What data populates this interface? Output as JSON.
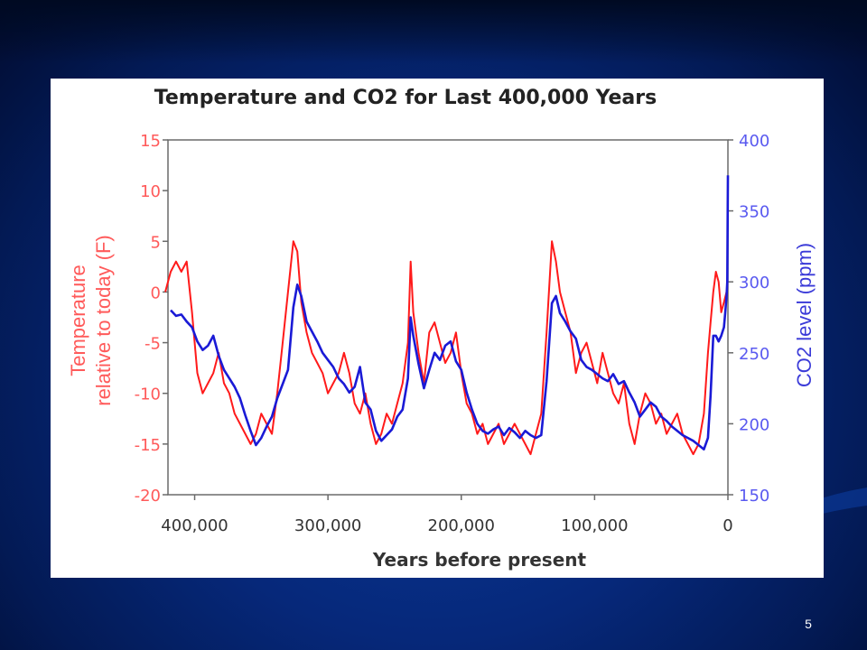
{
  "slide": {
    "page_number": "5"
  },
  "colors": {
    "temperature": "#ff1a1a",
    "co2": "#1a1ad6",
    "axis_left": "#ff5a5a",
    "axis_right": "#5a5af0"
  },
  "chart_data": {
    "type": "line",
    "title": "Temperature and CO2 for Last 400,000 Years",
    "xlabel": "Years before present",
    "ylabel": "Temperature relative to today (F)",
    "y2label": "CO2 level (ppm)",
    "xlim": [
      420000,
      0
    ],
    "ylim": [
      -20,
      15
    ],
    "y2lim": [
      150,
      400
    ],
    "xticks": [
      "400,000",
      "300,000",
      "200,000",
      "100,000",
      "0"
    ],
    "xtick_values": [
      400000,
      300000,
      200000,
      100000,
      0
    ],
    "yticks": [
      "15",
      "10",
      "5",
      "0",
      "-5",
      "-10",
      "-15",
      "-20"
    ],
    "ytick_values": [
      15,
      10,
      5,
      0,
      -5,
      -10,
      -15,
      -20
    ],
    "y2ticks": [
      "400",
      "350",
      "300",
      "250",
      "200",
      "150"
    ],
    "y2tick_values": [
      400,
      350,
      300,
      250,
      200,
      150
    ],
    "grid": false,
    "series": [
      {
        "axis": "left",
        "x": [
          422000,
          418000,
          414000,
          410000,
          406000,
          402000,
          398000,
          394000,
          390000,
          386000,
          382000,
          378000,
          374000,
          370000,
          366000,
          362000,
          358000,
          354000,
          350000,
          346000,
          342000,
          338000,
          334000,
          330000,
          326000,
          323000,
          320000,
          316000,
          312000,
          308000,
          304000,
          300000,
          296000,
          292000,
          288000,
          284000,
          280000,
          276000,
          272000,
          268000,
          264000,
          260000,
          256000,
          252000,
          248000,
          244000,
          240000,
          238000,
          236000,
          232000,
          228000,
          224000,
          220000,
          216000,
          212000,
          208000,
          204000,
          200000,
          196000,
          192000,
          188000,
          184000,
          180000,
          176000,
          172000,
          168000,
          164000,
          160000,
          156000,
          152000,
          148000,
          144000,
          140000,
          136000,
          132000,
          129000,
          126000,
          122000,
          118000,
          114000,
          110000,
          106000,
          102000,
          98000,
          94000,
          90000,
          86000,
          82000,
          78000,
          74000,
          70000,
          66000,
          62000,
          58000,
          54000,
          50000,
          46000,
          42000,
          38000,
          34000,
          30000,
          26000,
          22000,
          18000,
          15000,
          13000,
          11000,
          9000,
          7000,
          5000,
          3000,
          1000,
          0
        ],
        "y": [
          0,
          2,
          3,
          2,
          3,
          -2,
          -8,
          -10,
          -9,
          -8,
          -6,
          -9,
          -10,
          -12,
          -13,
          -14,
          -15,
          -14,
          -12,
          -13,
          -14,
          -10,
          -5,
          0,
          5,
          4,
          -1,
          -4,
          -6,
          -7,
          -8,
          -10,
          -9,
          -8,
          -6,
          -8,
          -11,
          -12,
          -10,
          -13,
          -15,
          -14,
          -12,
          -13,
          -11,
          -9,
          -5,
          3,
          -2,
          -6,
          -9,
          -4,
          -3,
          -5,
          -7,
          -6,
          -4,
          -8,
          -11,
          -12,
          -14,
          -13,
          -15,
          -14,
          -13,
          -15,
          -14,
          -13,
          -14,
          -15,
          -16,
          -14,
          -12,
          -4,
          5,
          3,
          0,
          -2,
          -4,
          -8,
          -6,
          -5,
          -7,
          -9,
          -6,
          -8,
          -10,
          -11,
          -9,
          -13,
          -15,
          -12,
          -10,
          -11,
          -13,
          -12,
          -14,
          -13,
          -12,
          -14,
          -15,
          -16,
          -15,
          -12,
          -6,
          -3,
          0,
          2,
          1,
          -2,
          -1,
          0,
          0
        ]
      },
      {
        "axis": "right",
        "x": [
          418000,
          414000,
          410000,
          406000,
          402000,
          398000,
          394000,
          390000,
          386000,
          382000,
          378000,
          374000,
          370000,
          366000,
          362000,
          358000,
          354000,
          350000,
          346000,
          342000,
          338000,
          334000,
          330000,
          326000,
          323000,
          320000,
          316000,
          312000,
          308000,
          304000,
          300000,
          296000,
          292000,
          288000,
          284000,
          280000,
          276000,
          272000,
          268000,
          264000,
          260000,
          256000,
          252000,
          248000,
          244000,
          240000,
          238000,
          236000,
          232000,
          228000,
          224000,
          220000,
          216000,
          212000,
          208000,
          204000,
          200000,
          196000,
          192000,
          188000,
          184000,
          180000,
          176000,
          172000,
          168000,
          164000,
          160000,
          156000,
          152000,
          148000,
          144000,
          140000,
          136000,
          132000,
          129000,
          126000,
          122000,
          118000,
          114000,
          110000,
          106000,
          102000,
          98000,
          94000,
          90000,
          86000,
          82000,
          78000,
          74000,
          70000,
          66000,
          62000,
          58000,
          54000,
          50000,
          46000,
          42000,
          38000,
          34000,
          30000,
          26000,
          22000,
          18000,
          15000,
          13000,
          11000,
          9000,
          7000,
          5000,
          3000,
          2000,
          1000,
          500,
          0
        ],
        "y": [
          280,
          276,
          277,
          272,
          268,
          258,
          252,
          255,
          262,
          248,
          238,
          232,
          226,
          218,
          206,
          195,
          185,
          190,
          198,
          205,
          218,
          228,
          238,
          282,
          298,
          290,
          272,
          265,
          258,
          250,
          245,
          240,
          232,
          228,
          222,
          226,
          240,
          215,
          210,
          195,
          188,
          192,
          196,
          205,
          210,
          232,
          275,
          262,
          242,
          225,
          238,
          250,
          245,
          255,
          258,
          244,
          238,
          222,
          210,
          200,
          195,
          193,
          196,
          198,
          192,
          197,
          194,
          190,
          195,
          192,
          190,
          192,
          230,
          285,
          290,
          278,
          272,
          265,
          260,
          245,
          240,
          238,
          235,
          232,
          230,
          235,
          228,
          230,
          222,
          215,
          205,
          210,
          215,
          212,
          205,
          202,
          198,
          195,
          192,
          190,
          188,
          185,
          182,
          190,
          220,
          262,
          262,
          258,
          262,
          268,
          278,
          290,
          300,
          375
        ]
      }
    ]
  }
}
